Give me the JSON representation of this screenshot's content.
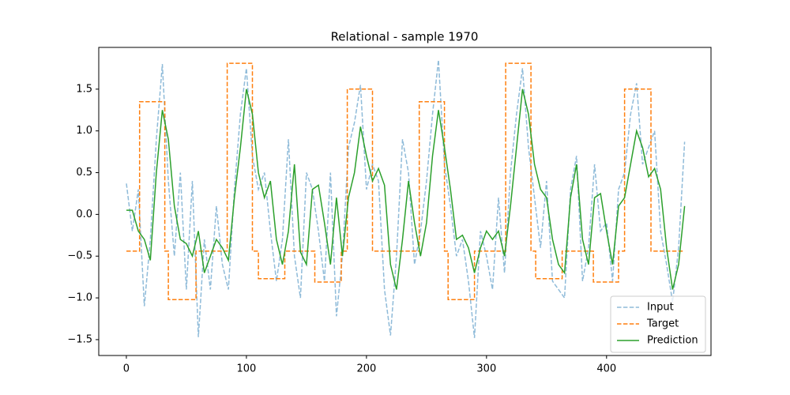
{
  "chart_data": {
    "type": "line",
    "title": "Relational - sample 1970",
    "xlim": [
      -23,
      487
    ],
    "ylim": [
      -1.69,
      2.0
    ],
    "xticks": [
      0,
      100,
      200,
      300,
      400
    ],
    "yticks": [
      {
        "value": -1.5,
        "label": "−1.5"
      },
      {
        "value": -1.0,
        "label": "−1.0"
      },
      {
        "value": -0.5,
        "label": "−0.5"
      },
      {
        "value": 0,
        "label": "0.0"
      },
      {
        "value": 0.5,
        "label": "0.5"
      },
      {
        "value": 1.0,
        "label": "1.0"
      },
      {
        "value": 1.5,
        "label": "1.5"
      }
    ],
    "legend": "lower right",
    "series": [
      {
        "name": "Input",
        "color": "#1f77b4",
        "dashed": true,
        "opacity": 0.5,
        "x": [
          0,
          5,
          10,
          15,
          20,
          25,
          30,
          35,
          40,
          45,
          50,
          55,
          60,
          65,
          70,
          75,
          80,
          85,
          90,
          95,
          100,
          105,
          110,
          115,
          120,
          125,
          130,
          135,
          140,
          145,
          150,
          155,
          160,
          165,
          170,
          175,
          180,
          185,
          190,
          195,
          200,
          205,
          210,
          215,
          220,
          225,
          230,
          235,
          240,
          245,
          250,
          255,
          260,
          265,
          270,
          275,
          280,
          285,
          290,
          295,
          300,
          305,
          310,
          315,
          320,
          325,
          330,
          335,
          340,
          345,
          350,
          355,
          360,
          365,
          370,
          375,
          380,
          385,
          390,
          395,
          400,
          405,
          410,
          415,
          420,
          425,
          430,
          435,
          440,
          445,
          450,
          455,
          460,
          465
        ],
        "values": [
          0.37,
          -0.2,
          0.3,
          -1.1,
          -0.3,
          0.9,
          1.8,
          0.4,
          -0.5,
          0.5,
          -0.9,
          0.4,
          -1.47,
          -0.3,
          -0.9,
          0.1,
          -0.6,
          -0.9,
          0.3,
          1.2,
          1.75,
          0.7,
          0.3,
          0.5,
          -0.2,
          -0.8,
          -0.3,
          0.9,
          -0.5,
          -1.0,
          0.5,
          0.3,
          -0.2,
          -0.8,
          0.5,
          -1.22,
          -0.5,
          0.8,
          1.1,
          1.55,
          0.3,
          0.6,
          0.4,
          -0.9,
          -1.45,
          -0.5,
          0.9,
          0.5,
          -0.6,
          -0.2,
          0.4,
          1.2,
          1.85,
          0.6,
          0.1,
          -0.5,
          -0.3,
          -0.8,
          -1.48,
          -0.2,
          -0.5,
          -0.9,
          0.2,
          -0.7,
          0.5,
          1.2,
          1.75,
          0.8,
          0.2,
          -0.4,
          0.4,
          -0.8,
          -0.9,
          -1.0,
          0.3,
          0.7,
          -0.8,
          -0.4,
          0.6,
          -0.2,
          -0.1,
          -0.8,
          0.3,
          0.5,
          1.2,
          1.57,
          0.6,
          0.8,
          1.0,
          -0.2,
          -0.6,
          -1.05,
          -0.4,
          0.87
        ]
      },
      {
        "name": "Target",
        "color": "#ff7f0e",
        "dashed": true,
        "opacity": 1,
        "x": [
          0,
          11,
          11,
          32,
          32,
          35,
          35,
          58,
          58,
          84,
          84,
          105,
          105,
          110,
          110,
          132,
          132,
          157,
          157,
          179,
          179,
          184,
          184,
          205,
          205,
          244,
          244,
          265,
          265,
          268,
          268,
          290,
          290,
          316,
          316,
          337,
          337,
          341,
          341,
          363,
          363,
          389,
          389,
          410,
          410,
          415,
          415,
          437,
          437,
          465
        ],
        "values": [
          -0.44,
          -0.44,
          1.35,
          1.35,
          -0.44,
          -0.44,
          -1.02,
          -1.02,
          -0.44,
          -0.44,
          1.81,
          1.81,
          -0.44,
          -0.44,
          -0.77,
          -0.77,
          -0.44,
          -0.44,
          -0.81,
          -0.81,
          -0.44,
          -0.44,
          1.5,
          1.5,
          -0.44,
          -0.44,
          1.35,
          1.35,
          -0.44,
          -0.44,
          -1.02,
          -1.02,
          -0.44,
          -0.44,
          1.81,
          1.81,
          -0.44,
          -0.44,
          -0.77,
          -0.77,
          -0.44,
          -0.44,
          -0.81,
          -0.81,
          -0.44,
          -0.44,
          1.5,
          1.5,
          -0.44,
          -0.44
        ]
      },
      {
        "name": "Prediction",
        "color": "#2ca02c",
        "dashed": false,
        "opacity": 1,
        "x": [
          0,
          5,
          10,
          15,
          20,
          25,
          30,
          35,
          40,
          45,
          50,
          55,
          60,
          65,
          70,
          75,
          80,
          85,
          90,
          95,
          100,
          105,
          110,
          115,
          120,
          125,
          130,
          135,
          140,
          145,
          150,
          155,
          160,
          165,
          170,
          175,
          180,
          185,
          190,
          195,
          200,
          205,
          210,
          215,
          220,
          225,
          230,
          235,
          240,
          245,
          250,
          255,
          260,
          265,
          270,
          275,
          280,
          285,
          290,
          295,
          300,
          305,
          310,
          315,
          320,
          325,
          330,
          335,
          340,
          345,
          350,
          355,
          360,
          365,
          370,
          375,
          380,
          385,
          390,
          395,
          400,
          405,
          410,
          415,
          420,
          425,
          430,
          435,
          440,
          445,
          450,
          455,
          460,
          465
        ],
        "values": [
          0.05,
          0.05,
          -0.2,
          -0.3,
          -0.55,
          0.5,
          1.25,
          0.9,
          0.1,
          -0.3,
          -0.35,
          -0.5,
          -0.2,
          -0.7,
          -0.5,
          -0.3,
          -0.4,
          -0.55,
          0.2,
          0.8,
          1.5,
          1.2,
          0.5,
          0.2,
          0.4,
          -0.3,
          -0.6,
          -0.2,
          0.6,
          -0.45,
          -0.6,
          0.3,
          0.35,
          -0.1,
          -0.6,
          0.2,
          -0.5,
          0.2,
          0.5,
          1.05,
          0.7,
          0.4,
          0.55,
          0.35,
          -0.6,
          -0.9,
          -0.3,
          0.4,
          -0.1,
          -0.5,
          -0.1,
          0.7,
          1.25,
          0.8,
          0.3,
          -0.3,
          -0.25,
          -0.4,
          -0.7,
          -0.4,
          -0.2,
          -0.3,
          -0.2,
          -0.5,
          0.1,
          0.8,
          1.5,
          1.2,
          0.6,
          0.3,
          0.2,
          -0.3,
          -0.6,
          -0.7,
          0.2,
          0.6,
          -0.3,
          -0.6,
          0.2,
          0.25,
          -0.2,
          -0.6,
          0.1,
          0.2,
          0.6,
          1.0,
          0.8,
          0.45,
          0.55,
          0.3,
          -0.4,
          -0.9,
          -0.6,
          0.1
        ]
      }
    ]
  }
}
